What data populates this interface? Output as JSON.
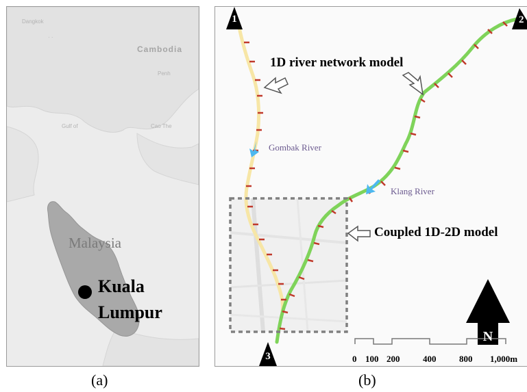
{
  "panel_a": {
    "caption": "(a)",
    "country_label": "Malaysia",
    "city_label_line1": "Kuala",
    "city_label_line2": "Lumpur",
    "background_labels": {
      "cambodia": "Cambodia"
    }
  },
  "panel_b": {
    "caption": "(b)",
    "callout_1d": "1D river network model",
    "callout_coupled": "Coupled 1D-2D model",
    "river_gombak": "Gombak River",
    "river_klang": "Klang River",
    "marker_1": "1",
    "marker_2": "2",
    "marker_3": "3",
    "north_label": "N",
    "scale_labels": [
      "0",
      "100",
      "200",
      "400",
      "800",
      "1,000m"
    ]
  },
  "colors": {
    "gombak_river": "#f7e6a6",
    "klang_river": "#7fd35a",
    "flow_arrow": "#4db8ef",
    "cross_section_tick": "#c0392b",
    "malaysia_land": "#a9a9a9",
    "dashed_box": "#808080"
  }
}
